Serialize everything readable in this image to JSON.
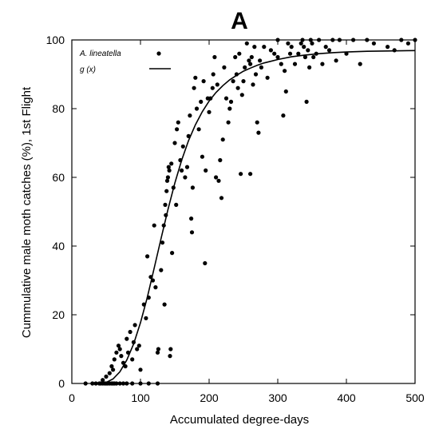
{
  "chart_data": {
    "type": "scatter",
    "title": "A",
    "xlabel": "Accumulated degree-days",
    "ylabel": "Cummulative male moth catches (%), 1st Flight",
    "xlim": [
      0,
      500
    ],
    "ylim": [
      0,
      100
    ],
    "x_ticks": [
      0,
      100,
      200,
      300,
      400,
      500
    ],
    "y_ticks": [
      0,
      20,
      40,
      60,
      80,
      100
    ],
    "grid": false,
    "legend_position": "top-left",
    "series": [
      {
        "name": "A. lineatella",
        "kind": "points",
        "color": "#000000",
        "points": [
          [
            20,
            0
          ],
          [
            30,
            0
          ],
          [
            35,
            0
          ],
          [
            40,
            0
          ],
          [
            42,
            0
          ],
          [
            45,
            0
          ],
          [
            48,
            0
          ],
          [
            50,
            0
          ],
          [
            52,
            0
          ],
          [
            55,
            0
          ],
          [
            58,
            0
          ],
          [
            60,
            0
          ],
          [
            62,
            0
          ],
          [
            65,
            0
          ],
          [
            70,
            0
          ],
          [
            75,
            0
          ],
          [
            80,
            0
          ],
          [
            88,
            0
          ],
          [
            100,
            0
          ],
          [
            112,
            0
          ],
          [
            125,
            0
          ],
          [
            45,
            1
          ],
          [
            50,
            2
          ],
          [
            55,
            3
          ],
          [
            58,
            5
          ],
          [
            60,
            4
          ],
          [
            62,
            7
          ],
          [
            65,
            9
          ],
          [
            68,
            11
          ],
          [
            70,
            10
          ],
          [
            72,
            8
          ],
          [
            75,
            6
          ],
          [
            78,
            5
          ],
          [
            80,
            13
          ],
          [
            82,
            9
          ],
          [
            85,
            15
          ],
          [
            88,
            7
          ],
          [
            90,
            12
          ],
          [
            92,
            17
          ],
          [
            95,
            10
          ],
          [
            98,
            11
          ],
          [
            100,
            4
          ],
          [
            105,
            23
          ],
          [
            108,
            19
          ],
          [
            110,
            37
          ],
          [
            112,
            25
          ],
          [
            115,
            31
          ],
          [
            118,
            30
          ],
          [
            120,
            46
          ],
          [
            122,
            28
          ],
          [
            125,
            9
          ],
          [
            126,
            10
          ],
          [
            130,
            33
          ],
          [
            132,
            41
          ],
          [
            134,
            46
          ],
          [
            135,
            23
          ],
          [
            136,
            52
          ],
          [
            137,
            49
          ],
          [
            138,
            56
          ],
          [
            139,
            59
          ],
          [
            140,
            60
          ],
          [
            141,
            63
          ],
          [
            142,
            62
          ],
          [
            143,
            8
          ],
          [
            144,
            10
          ],
          [
            145,
            64
          ],
          [
            146,
            38
          ],
          [
            148,
            57
          ],
          [
            150,
            70
          ],
          [
            152,
            52
          ],
          [
            153,
            74
          ],
          [
            155,
            76
          ],
          [
            158,
            65
          ],
          [
            160,
            62
          ],
          [
            162,
            69
          ],
          [
            165,
            60
          ],
          [
            168,
            63
          ],
          [
            170,
            72
          ],
          [
            172,
            78
          ],
          [
            174,
            48
          ],
          [
            175,
            44
          ],
          [
            176,
            57
          ],
          [
            178,
            86
          ],
          [
            180,
            89
          ],
          [
            182,
            80
          ],
          [
            185,
            74
          ],
          [
            188,
            82
          ],
          [
            190,
            66
          ],
          [
            192,
            88
          ],
          [
            194,
            35
          ],
          [
            195,
            62
          ],
          [
            198,
            83
          ],
          [
            200,
            79
          ],
          [
            202,
            83
          ],
          [
            205,
            86
          ],
          [
            206,
            90
          ],
          [
            208,
            95
          ],
          [
            210,
            60
          ],
          [
            212,
            87
          ],
          [
            214,
            59
          ],
          [
            216,
            65
          ],
          [
            218,
            54
          ],
          [
            220,
            71
          ],
          [
            222,
            92
          ],
          [
            225,
            83
          ],
          [
            228,
            76
          ],
          [
            232,
            82
          ],
          [
            235,
            88
          ],
          [
            238,
            95
          ],
          [
            240,
            90
          ],
          [
            242,
            86
          ],
          [
            244,
            96
          ],
          [
            246,
            61
          ],
          [
            248,
            84
          ],
          [
            250,
            88
          ],
          [
            252,
            92
          ],
          [
            255,
            99
          ],
          [
            258,
            94
          ],
          [
            260,
            61
          ],
          [
            262,
            95
          ],
          [
            264,
            87
          ],
          [
            266,
            98
          ],
          [
            268,
            90
          ],
          [
            270,
            76
          ],
          [
            272,
            73
          ],
          [
            274,
            94
          ],
          [
            276,
            92
          ],
          [
            280,
            98
          ],
          [
            285,
            89
          ],
          [
            290,
            97
          ],
          [
            295,
            96
          ],
          [
            300,
            100
          ],
          [
            305,
            93
          ],
          [
            308,
            78
          ],
          [
            310,
            91
          ],
          [
            312,
            85
          ],
          [
            315,
            99
          ],
          [
            318,
            96
          ],
          [
            320,
            98
          ],
          [
            325,
            93
          ],
          [
            330,
            96
          ],
          [
            334,
            99
          ],
          [
            336,
            100
          ],
          [
            338,
            98
          ],
          [
            340,
            95
          ],
          [
            342,
            82
          ],
          [
            344,
            97
          ],
          [
            346,
            92
          ],
          [
            348,
            100
          ],
          [
            350,
            99
          ],
          [
            352,
            95
          ],
          [
            356,
            96
          ],
          [
            360,
            100
          ],
          [
            365,
            93
          ],
          [
            370,
            98
          ],
          [
            375,
            97
          ],
          [
            380,
            100
          ],
          [
            385,
            94
          ],
          [
            390,
            100
          ],
          [
            400,
            96
          ],
          [
            410,
            100
          ],
          [
            420,
            93
          ],
          [
            430,
            100
          ],
          [
            440,
            99
          ],
          [
            460,
            98
          ],
          [
            470,
            97
          ],
          [
            480,
            100
          ],
          [
            490,
            99
          ],
          [
            500,
            100
          ],
          [
            300,
            95
          ],
          [
            260,
            93
          ],
          [
            230,
            80
          ]
        ]
      },
      {
        "name": "g (x)",
        "kind": "line",
        "color": "#000000",
        "points": [
          [
            50,
            0.3
          ],
          [
            60,
            1.3
          ],
          [
            70,
            3.4
          ],
          [
            80,
            6.8
          ],
          [
            90,
            11.5
          ],
          [
            100,
            17.7
          ],
          [
            110,
            25.1
          ],
          [
            120,
            33.6
          ],
          [
            130,
            42.2
          ],
          [
            140,
            50.6
          ],
          [
            150,
            58.3
          ],
          [
            160,
            65.0
          ],
          [
            170,
            70.7
          ],
          [
            180,
            75.3
          ],
          [
            190,
            79.1
          ],
          [
            200,
            82.2
          ],
          [
            210,
            84.7
          ],
          [
            220,
            86.7
          ],
          [
            230,
            88.4
          ],
          [
            240,
            89.7
          ],
          [
            250,
            90.9
          ],
          [
            260,
            91.8
          ],
          [
            270,
            92.6
          ],
          [
            280,
            93.3
          ],
          [
            290,
            93.8
          ],
          [
            300,
            94.3
          ],
          [
            320,
            95.1
          ],
          [
            340,
            95.6
          ],
          [
            360,
            96.0
          ],
          [
            380,
            96.3
          ],
          [
            400,
            96.5
          ],
          [
            430,
            96.7
          ],
          [
            460,
            96.8
          ],
          [
            500,
            96.9
          ]
        ]
      }
    ]
  }
}
